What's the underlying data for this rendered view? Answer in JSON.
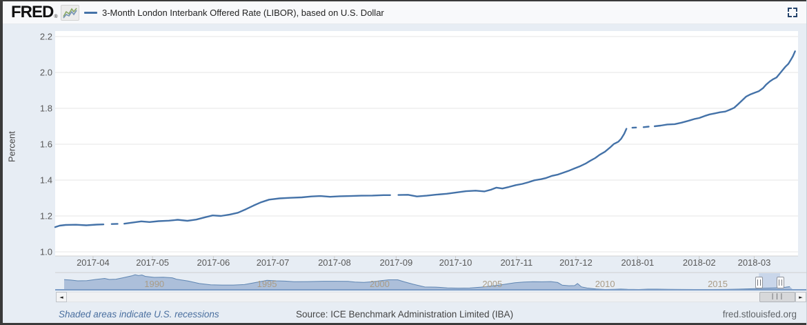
{
  "header": {
    "logo": "FRED",
    "registered": "®",
    "legend_label": "3-Month London Interbank Offered Rate (LIBOR), based on U.S. Dollar"
  },
  "footer": {
    "recession_note": "Shaded areas indicate U.S. recessions",
    "source": "Source: ICE Benchmark Administration Limited (IBA)",
    "site": "fred.stlouisfed.org"
  },
  "icons": {
    "scroll_left": "◄",
    "scroll_right": "►",
    "grip": "|||"
  },
  "colors": {
    "series": "#4472a8",
    "mini_fill": "#9db3d3",
    "mini_stroke": "#5e85b2",
    "mini_baseline": "#7b9cc6",
    "selection": "#c9d6ea",
    "grid": "#e5e5e5",
    "plot_border": "#d2d2d2"
  },
  "chart_data": {
    "type": "line",
    "title": "3-Month London Interbank Offered Rate (LIBOR), based on U.S. Dollar",
    "ylabel": "Percent",
    "ylim": [
      1.0,
      2.2
    ],
    "grid": true,
    "y_ticks": [
      "1.0",
      "1.2",
      "1.4",
      "1.6",
      "1.8",
      "2.0",
      "2.2"
    ],
    "x_ticks": [
      {
        "label": "2017-04",
        "f": 0.051
      },
      {
        "label": "2017-05",
        "f": 0.131
      },
      {
        "label": "2017-06",
        "f": 0.213
      },
      {
        "label": "2017-07",
        "f": 0.293
      },
      {
        "label": "2017-08",
        "f": 0.376
      },
      {
        "label": "2017-09",
        "f": 0.459
      },
      {
        "label": "2017-10",
        "f": 0.539
      },
      {
        "label": "2017-11",
        "f": 0.621
      },
      {
        "label": "2017-12",
        "f": 0.701
      },
      {
        "label": "2018-01",
        "f": 0.784
      },
      {
        "label": "2018-02",
        "f": 0.867
      },
      {
        "label": "2018-03",
        "f": 0.941
      }
    ],
    "series": [
      {
        "name": "3-Month London Interbank Offered Rate (LIBOR), based on U.S. Dollar",
        "units": "Percent",
        "points": [
          [
            0.0,
            1.138
          ],
          [
            0.006,
            1.146
          ],
          [
            0.014,
            1.15
          ],
          [
            0.028,
            1.151
          ],
          [
            0.042,
            1.148
          ],
          [
            0.056,
            1.152
          ],
          [
            0.065,
            1.153
          ],
          null,
          [
            0.076,
            1.155
          ],
          [
            0.084,
            1.156
          ],
          null,
          [
            0.093,
            1.157
          ],
          [
            0.104,
            1.163
          ],
          [
            0.116,
            1.17
          ],
          [
            0.127,
            1.166
          ],
          [
            0.139,
            1.171
          ],
          [
            0.153,
            1.174
          ],
          [
            0.165,
            1.179
          ],
          [
            0.178,
            1.173
          ],
          [
            0.19,
            1.18
          ],
          [
            0.202,
            1.193
          ],
          [
            0.212,
            1.203
          ],
          [
            0.223,
            1.2
          ],
          [
            0.235,
            1.208
          ],
          [
            0.246,
            1.218
          ],
          [
            0.257,
            1.238
          ],
          [
            0.267,
            1.258
          ],
          [
            0.277,
            1.276
          ],
          [
            0.288,
            1.291
          ],
          [
            0.302,
            1.298
          ],
          [
            0.316,
            1.301
          ],
          [
            0.332,
            1.304
          ],
          [
            0.345,
            1.309
          ],
          [
            0.357,
            1.311
          ],
          [
            0.37,
            1.307
          ],
          [
            0.383,
            1.31
          ],
          [
            0.397,
            1.311
          ],
          [
            0.412,
            1.313
          ],
          [
            0.427,
            1.314
          ],
          [
            0.442,
            1.316
          ],
          [
            0.451,
            1.316
          ],
          null,
          [
            0.462,
            1.317
          ],
          [
            0.475,
            1.318
          ],
          [
            0.487,
            1.309
          ],
          [
            0.5,
            1.313
          ],
          [
            0.513,
            1.319
          ],
          [
            0.527,
            1.324
          ],
          [
            0.54,
            1.331
          ],
          [
            0.553,
            1.338
          ],
          [
            0.566,
            1.341
          ],
          [
            0.578,
            1.337
          ],
          [
            0.587,
            1.347
          ],
          [
            0.594,
            1.358
          ],
          [
            0.602,
            1.353
          ],
          [
            0.611,
            1.362
          ],
          [
            0.62,
            1.372
          ],
          [
            0.629,
            1.379
          ],
          [
            0.637,
            1.388
          ],
          [
            0.645,
            1.399
          ],
          [
            0.654,
            1.405
          ],
          [
            0.661,
            1.412
          ],
          [
            0.669,
            1.424
          ],
          [
            0.677,
            1.431
          ],
          [
            0.684,
            1.441
          ],
          [
            0.692,
            1.453
          ],
          [
            0.699,
            1.465
          ],
          [
            0.707,
            1.478
          ],
          [
            0.714,
            1.492
          ],
          [
            0.72,
            1.507
          ],
          [
            0.727,
            1.523
          ],
          [
            0.733,
            1.541
          ],
          [
            0.74,
            1.558
          ],
          [
            0.747,
            1.582
          ],
          [
            0.752,
            1.601
          ],
          [
            0.758,
            1.614
          ],
          [
            0.762,
            1.631
          ],
          [
            0.766,
            1.658
          ],
          [
            0.769,
            1.686
          ],
          null,
          [
            0.777,
            1.692
          ],
          [
            0.782,
            1.693
          ],
          null,
          [
            0.792,
            1.695
          ],
          [
            0.799,
            1.698
          ],
          null,
          [
            0.807,
            1.7
          ],
          [
            0.815,
            1.704
          ],
          [
            0.824,
            1.71
          ],
          [
            0.834,
            1.712
          ],
          [
            0.843,
            1.72
          ],
          [
            0.852,
            1.73
          ],
          [
            0.86,
            1.74
          ],
          [
            0.867,
            1.746
          ],
          [
            0.874,
            1.757
          ],
          [
            0.881,
            1.766
          ],
          [
            0.888,
            1.772
          ],
          [
            0.895,
            1.778
          ],
          [
            0.902,
            1.782
          ],
          [
            0.908,
            1.792
          ],
          [
            0.914,
            1.803
          ],
          [
            0.919,
            1.822
          ],
          [
            0.925,
            1.845
          ],
          [
            0.93,
            1.865
          ],
          [
            0.936,
            1.878
          ],
          [
            0.941,
            1.886
          ],
          [
            0.947,
            1.895
          ],
          [
            0.953,
            1.913
          ],
          [
            0.957,
            1.932
          ],
          [
            0.962,
            1.95
          ],
          [
            0.966,
            1.961
          ],
          [
            0.971,
            1.972
          ],
          [
            0.975,
            1.992
          ],
          [
            0.979,
            2.012
          ],
          [
            0.983,
            2.032
          ],
          [
            0.987,
            2.048
          ],
          [
            0.99,
            2.068
          ],
          [
            0.993,
            2.09
          ],
          [
            0.996,
            2.118
          ]
        ]
      }
    ],
    "range_selector": {
      "type": "area",
      "ylim": [
        0,
        10.6
      ],
      "x_domain_years": [
        1986,
        2018.35
      ],
      "year_labels": [
        "1990",
        "1995",
        "2000",
        "2005",
        "2010",
        "2015"
      ],
      "selection_f": [
        0.953,
        0.982
      ],
      "points": [
        [
          1986.0,
          6.8
        ],
        [
          1986.3,
          6.5
        ],
        [
          1986.6,
          6.0
        ],
        [
          1987.0,
          6.1
        ],
        [
          1987.4,
          6.9
        ],
        [
          1987.8,
          7.6
        ],
        [
          1988.0,
          6.9
        ],
        [
          1988.3,
          7.1
        ],
        [
          1988.6,
          8.0
        ],
        [
          1989.0,
          9.3
        ],
        [
          1989.15,
          10.1
        ],
        [
          1989.3,
          9.5
        ],
        [
          1989.45,
          9.9
        ],
        [
          1989.6,
          9.0
        ],
        [
          1990.0,
          8.3
        ],
        [
          1990.4,
          8.4
        ],
        [
          1990.8,
          8.0
        ],
        [
          1991.0,
          7.0
        ],
        [
          1991.5,
          5.9
        ],
        [
          1992.0,
          4.2
        ],
        [
          1992.5,
          3.3
        ],
        [
          1993.0,
          3.2
        ],
        [
          1993.5,
          3.2
        ],
        [
          1994.0,
          3.5
        ],
        [
          1994.5,
          4.9
        ],
        [
          1995.0,
          6.3
        ],
        [
          1995.4,
          6.0
        ],
        [
          1995.8,
          5.8
        ],
        [
          1996.2,
          5.4
        ],
        [
          1996.8,
          5.5
        ],
        [
          1997.5,
          5.7
        ],
        [
          1998.0,
          5.7
        ],
        [
          1998.6,
          5.6
        ],
        [
          1998.9,
          5.2
        ],
        [
          1999.3,
          5.0
        ],
        [
          1999.7,
          5.4
        ],
        [
          2000.0,
          6.0
        ],
        [
          2000.4,
          6.7
        ],
        [
          2000.8,
          6.7
        ],
        [
          2001.1,
          5.3
        ],
        [
          2001.5,
          3.7
        ],
        [
          2002.0,
          1.9
        ],
        [
          2002.5,
          1.8
        ],
        [
          2003.0,
          1.3
        ],
        [
          2003.5,
          1.1
        ],
        [
          2004.0,
          1.2
        ],
        [
          2004.5,
          1.8
        ],
        [
          2005.0,
          2.6
        ],
        [
          2005.5,
          3.6
        ],
        [
          2006.0,
          4.7
        ],
        [
          2006.4,
          5.2
        ],
        [
          2006.8,
          5.4
        ],
        [
          2007.2,
          5.35
        ],
        [
          2007.6,
          5.5
        ],
        [
          2007.75,
          5.2
        ],
        [
          2007.9,
          4.9
        ],
        [
          2008.1,
          3.1
        ],
        [
          2008.4,
          2.7
        ],
        [
          2008.65,
          2.8
        ],
        [
          2008.78,
          4.2
        ],
        [
          2008.95,
          2.0
        ],
        [
          2009.2,
          1.2
        ],
        [
          2009.6,
          0.6
        ],
        [
          2010.0,
          0.25
        ],
        [
          2010.4,
          0.35
        ],
        [
          2010.7,
          0.5
        ],
        [
          2011.0,
          0.3
        ],
        [
          2011.5,
          0.25
        ],
        [
          2011.9,
          0.45
        ],
        [
          2012.3,
          0.47
        ],
        [
          2012.8,
          0.35
        ],
        [
          2013.3,
          0.28
        ],
        [
          2014.0,
          0.24
        ],
        [
          2014.7,
          0.24
        ],
        [
          2015.3,
          0.28
        ],
        [
          2015.9,
          0.45
        ],
        [
          2016.3,
          0.65
        ],
        [
          2016.7,
          0.85
        ],
        [
          2017.0,
          1.0
        ],
        [
          2017.4,
          1.2
        ],
        [
          2017.8,
          1.4
        ],
        [
          2018.0,
          1.7
        ],
        [
          2018.2,
          2.1
        ]
      ]
    }
  }
}
